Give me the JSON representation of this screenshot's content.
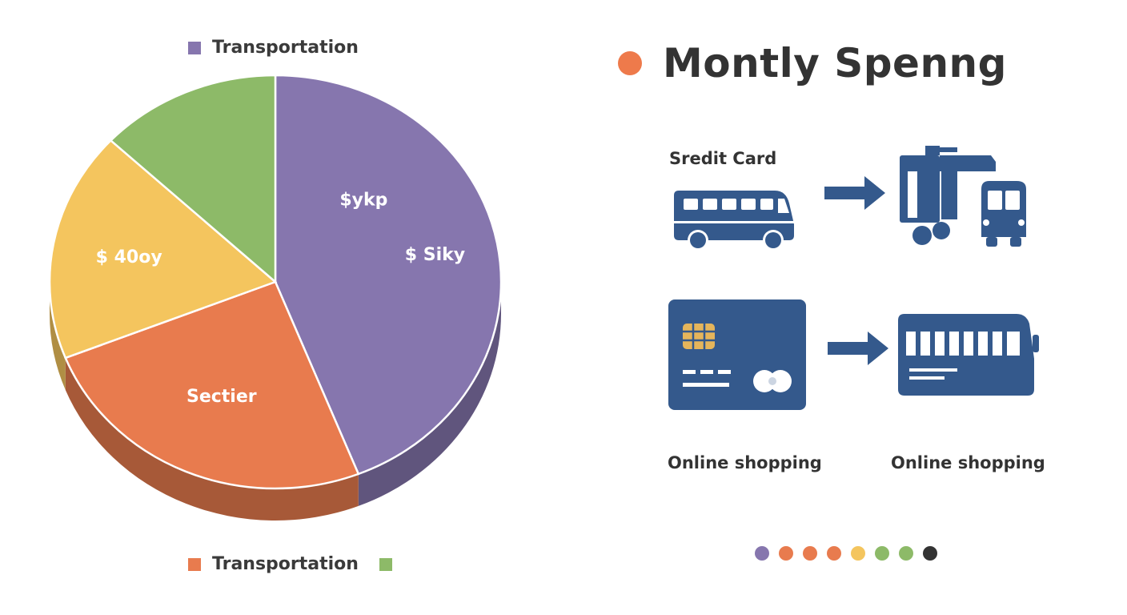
{
  "title": "Montly Spenng",
  "accent_color": "#EE7A4B",
  "icon_color": "#34598C",
  "chart_data": {
    "type": "pie",
    "legend": {
      "top": {
        "label": "Transportation",
        "color": "#8676AE"
      },
      "bottom": {
        "label": "Transportation",
        "color": "#E87B4E",
        "extra_color": "#8DBA68"
      }
    },
    "slices": [
      {
        "label": "$ykp",
        "second_label": "$ Siky",
        "value": 44,
        "color": "#8676AE"
      },
      {
        "label": "Sectier",
        "value": 25,
        "color": "#E87B4E"
      },
      {
        "label": "$ 40oy",
        "value": 18,
        "color": "#F4C55E"
      },
      {
        "label": "",
        "value": 13,
        "color": "#8DBA68"
      }
    ]
  },
  "flow": {
    "top_caption": "Sredit Card",
    "row1": {
      "left_icon": "bus-icon",
      "arrow": "arrow-right-icon",
      "right_icon": "truck-icon"
    },
    "row2": {
      "left_icon": "credit-card-icon",
      "arrow": "arrow-right-icon",
      "right_icon": "bus-side-icon"
    },
    "bottom_captions": [
      "Online shopping",
      "Online shopping"
    ]
  },
  "color_dots": [
    "#8676AE",
    "#E87B4E",
    "#E87B4E",
    "#E87B4E",
    "#F4C55E",
    "#8DBA68",
    "#8DBA68",
    "#333333"
  ]
}
